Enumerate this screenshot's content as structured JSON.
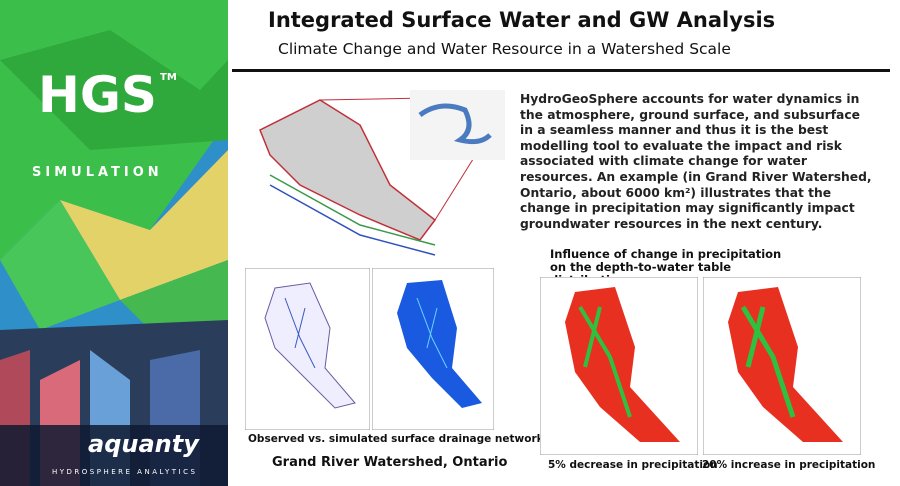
{
  "sidebar": {
    "logo": "HGS",
    "trademark": "TM",
    "product": "SIMULATION",
    "company": "aquanty",
    "tagline": "HYDROSPHERE ANALYTICS"
  },
  "header": {
    "title": "Integrated Surface Water and GW Analysis",
    "subtitle": "Climate Change and Water Resource in a Watershed Scale"
  },
  "body": {
    "paragraph": "HydroGeoSphere accounts for water dynamics in the atmosphere, ground surface, and subsurface in a seamless manner and thus it is the best modelling tool to evaluate the impact and risk associated with climate change for water resources. An example (in Grand River Watershed, Ontario, about 6000 km²) illustrates that the change in precipitation may significantly impact groundwater resources in the next century."
  },
  "figures": {
    "drainage_caption": "Observed vs. simulated surface drainage networks",
    "watershed_caption": "Grand River Watershed, Ontario",
    "precip_title": "Influence of change in precipitation on the depth-to-water table distribution",
    "decrease_caption": "5% decrease in precipitation",
    "increase_caption": "20% increase in precipitation"
  }
}
